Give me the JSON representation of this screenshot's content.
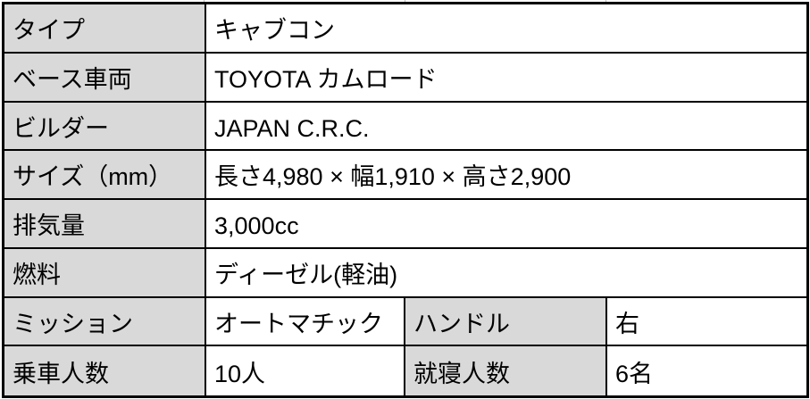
{
  "page": {
    "background": "#ffffff"
  },
  "table": {
    "description": "vehicle-spec-table",
    "colors": {
      "label_bg": "#d9d9d9",
      "value_bg": "#ffffff",
      "border": "#000000",
      "gridline_stub": "#bdbdbd"
    },
    "rows": [
      {
        "label": "タイプ",
        "value": "キャブコン"
      },
      {
        "label": "ベース車両",
        "value": "TOYOTA カムロード"
      },
      {
        "label": "ビルダー",
        "value": "JAPAN C.R.C."
      },
      {
        "label": "サイズ（mm）",
        "value": "長さ4,980 × 幅1,910 × 高さ2,900"
      },
      {
        "label": "排気量",
        "value": "3,000cc"
      },
      {
        "label": "燃料",
        "value": "ディーゼル(軽油)"
      },
      {
        "label": "ミッション",
        "value": "オートマチック",
        "label2": "ハンドル",
        "value2": "右"
      },
      {
        "label": "乗車人数",
        "value": "10人",
        "label2": "就寝人数",
        "value2": "6名"
      }
    ]
  }
}
